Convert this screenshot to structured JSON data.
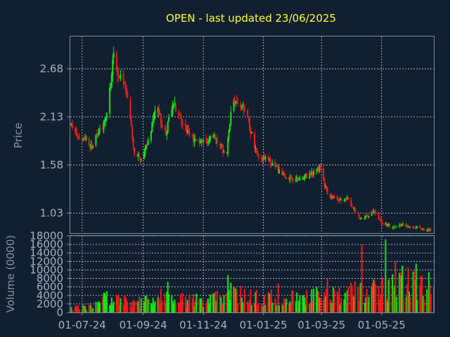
{
  "colors": {
    "background": "#121f30",
    "up": "#11e811",
    "down": "#ef1a1a",
    "title": "#ffff33",
    "tick": "#9fb3c8",
    "axis_title": "#7f95ad"
  },
  "chart_data": [
    {
      "type": "candlestick",
      "title": "OPEN - last updated 23/06/2025",
      "ylabel": "Price",
      "ylim": [
        0.8,
        3.05
      ],
      "y_ticks": [
        "1.03",
        "1.58",
        "2.13",
        "2.68"
      ],
      "x_tick_labels": [
        "01-07-24",
        "01-09-24",
        "01-11-24",
        "01-01-25",
        "01-03-25",
        "01-05-25"
      ],
      "x_tick_dates": [
        "2024-07-01",
        "2024-09-01",
        "2024-11-01",
        "2025-01-01",
        "2025-03-01",
        "2025-05-01"
      ],
      "xlim": [
        "2024-06-19",
        "2025-06-23"
      ],
      "grid": true,
      "close_path": [
        [
          "2024-06-20",
          2.03
        ],
        [
          "2024-06-27",
          1.9
        ],
        [
          "2024-07-04",
          1.86
        ],
        [
          "2024-07-11",
          1.8
        ],
        [
          "2024-07-18",
          1.95
        ],
        [
          "2024-07-25",
          2.1
        ],
        [
          "2024-07-30",
          2.5
        ],
        [
          "2024-08-02",
          2.85
        ],
        [
          "2024-08-07",
          2.6
        ],
        [
          "2024-08-12",
          2.55
        ],
        [
          "2024-08-18",
          2.2
        ],
        [
          "2024-08-23",
          1.7
        ],
        [
          "2024-08-30",
          1.66
        ],
        [
          "2024-09-06",
          1.85
        ],
        [
          "2024-09-11",
          2.1
        ],
        [
          "2024-09-15",
          2.35
        ],
        [
          "2024-09-19",
          2.05
        ],
        [
          "2024-09-24",
          1.95
        ],
        [
          "2024-10-02",
          2.3
        ],
        [
          "2024-10-07",
          2.15
        ],
        [
          "2024-10-12",
          2.05
        ],
        [
          "2024-10-20",
          1.9
        ],
        [
          "2024-10-28",
          1.85
        ],
        [
          "2024-11-05",
          1.84
        ],
        [
          "2024-11-12",
          1.92
        ],
        [
          "2024-11-20",
          1.78
        ],
        [
          "2024-11-24",
          1.62
        ],
        [
          "2024-11-29",
          2.2
        ],
        [
          "2024-12-04",
          2.32
        ],
        [
          "2024-12-09",
          2.25
        ],
        [
          "2024-12-14",
          2.18
        ],
        [
          "2024-12-19",
          1.98
        ],
        [
          "2024-12-26",
          1.68
        ],
        [
          "2025-01-03",
          1.64
        ],
        [
          "2025-01-12",
          1.58
        ],
        [
          "2025-01-22",
          1.44
        ],
        [
          "2025-02-02",
          1.4
        ],
        [
          "2025-02-12",
          1.44
        ],
        [
          "2025-02-20",
          1.48
        ],
        [
          "2025-02-27",
          1.55
        ],
        [
          "2025-03-03",
          1.4
        ],
        [
          "2025-03-08",
          1.22
        ],
        [
          "2025-03-18",
          1.18
        ],
        [
          "2025-03-27",
          1.2
        ],
        [
          "2025-04-04",
          1.05
        ],
        [
          "2025-04-10",
          0.96
        ],
        [
          "2025-04-16",
          1.0
        ],
        [
          "2025-04-24",
          1.04
        ],
        [
          "2025-05-01",
          0.92
        ],
        [
          "2025-05-10",
          0.88
        ],
        [
          "2025-05-20",
          0.9
        ],
        [
          "2025-05-30",
          0.86
        ],
        [
          "2025-06-08",
          0.86
        ],
        [
          "2025-06-16",
          0.84
        ],
        [
          "2025-06-23",
          0.82
        ]
      ]
    },
    {
      "type": "bar",
      "ylabel": "Volume (0000)",
      "ylim": [
        0,
        18000
      ],
      "y_ticks": [
        "0",
        "2000",
        "4000",
        "6000",
        "8000",
        "10000",
        "12000",
        "14000",
        "16000",
        "18000"
      ],
      "x_tick_labels": [
        "01-07-24",
        "01-09-24",
        "01-11-24",
        "01-01-25",
        "01-03-25",
        "01-05-25"
      ],
      "grid": true,
      "volume_path": [
        [
          "2024-06-20",
          1500
        ],
        [
          "2024-07-05",
          1300
        ],
        [
          "2024-07-15",
          2500
        ],
        [
          "2024-07-28",
          4200
        ],
        [
          "2024-08-05",
          3500
        ],
        [
          "2024-08-20",
          2800
        ],
        [
          "2024-09-01",
          3000
        ],
        [
          "2024-09-15",
          4500
        ],
        [
          "2024-10-01",
          4200
        ],
        [
          "2024-10-15",
          3200
        ],
        [
          "2024-11-01",
          3400
        ],
        [
          "2024-11-15",
          4000
        ],
        [
          "2024-12-01",
          5500
        ],
        [
          "2024-12-15",
          4200
        ],
        [
          "2025-01-01",
          4000
        ],
        [
          "2025-01-15",
          4500
        ],
        [
          "2025-02-01",
          4300
        ],
        [
          "2025-02-15",
          4200
        ],
        [
          "2025-03-01",
          5200
        ],
        [
          "2025-03-15",
          5000
        ],
        [
          "2025-04-01",
          5400
        ],
        [
          "2025-04-15",
          5800
        ],
        [
          "2025-05-01",
          6200
        ],
        [
          "2025-05-15",
          7200
        ],
        [
          "2025-06-01",
          7500
        ],
        [
          "2025-06-23",
          7000
        ]
      ],
      "volume_spikes": [
        [
          "2025-04-11",
          16000
        ],
        [
          "2025-04-25",
          6500
        ],
        [
          "2025-05-05",
          17200
        ],
        [
          "2025-05-12",
          9000
        ],
        [
          "2025-05-15",
          12000
        ],
        [
          "2025-05-22",
          11000
        ],
        [
          "2025-05-28",
          10500
        ],
        [
          "2025-06-05",
          11500
        ],
        [
          "2025-06-10",
          8500
        ],
        [
          "2025-06-18",
          9500
        ],
        [
          "2024-11-26",
          8800
        ],
        [
          "2024-11-30",
          8500
        ],
        [
          "2024-09-26",
          7200
        ],
        [
          "2025-03-07",
          8000
        ],
        [
          "2025-01-16",
          6800
        ]
      ]
    }
  ]
}
